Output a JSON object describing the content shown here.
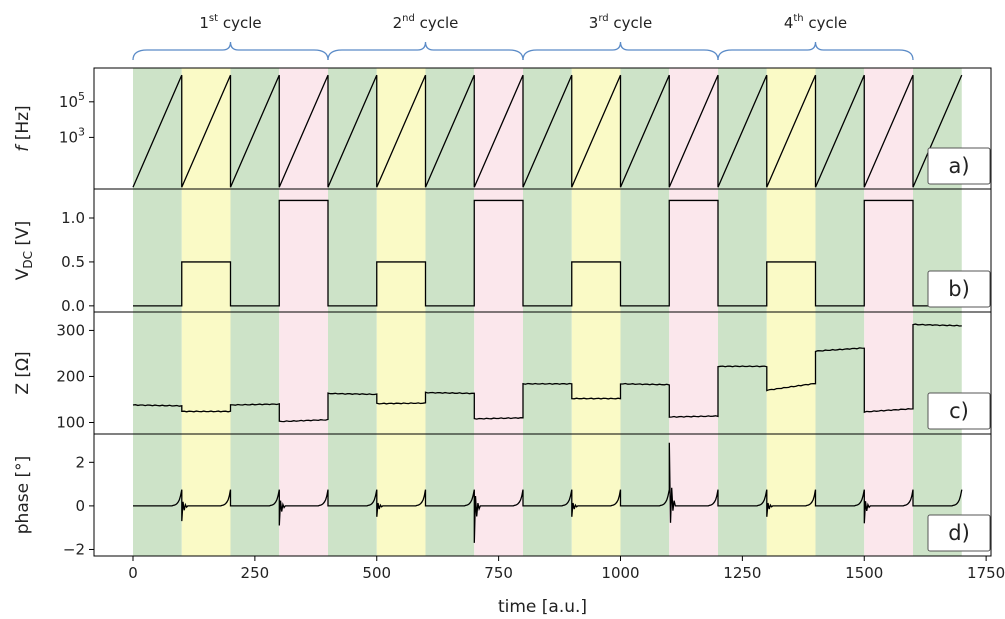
{
  "chart_data": {
    "type": "line",
    "xlabel": "time [a.u.]",
    "xlim": [
      -80,
      1760
    ],
    "x_ticks": [
      0,
      250,
      500,
      750,
      1000,
      1250,
      1500,
      1750
    ],
    "phases": {
      "segment_length": 100,
      "sequence": [
        "green",
        "yellow",
        "green",
        "pink",
        "green",
        "yellow",
        "green",
        "pink",
        "green",
        "yellow",
        "green",
        "pink",
        "green",
        "yellow",
        "green",
        "pink",
        "green"
      ],
      "colors": {
        "green": "#cde3c8",
        "yellow": "#fafac6",
        "pink": "#fbe7ec"
      }
    },
    "cycles": [
      {
        "label": "1",
        "sup": "st",
        "suffix": " cycle",
        "x_start": 0,
        "x_end": 400
      },
      {
        "label": "2",
        "sup": "nd",
        "suffix": " cycle",
        "x_start": 400,
        "x_end": 800
      },
      {
        "label": "3",
        "sup": "rd",
        "suffix": " cycle",
        "x_start": 800,
        "x_end": 1200
      },
      {
        "label": "4",
        "sup": "th",
        "suffix": " cycle",
        "x_start": 1200,
        "x_end": 1600
      }
    ],
    "panels": [
      {
        "id": "a",
        "tag": "a)",
        "ylabel_main": "f",
        "ylabel_unit": " [Hz]",
        "scale": "log",
        "ylim_log10": [
          0.1,
          6.9
        ],
        "y_ticks": [
          {
            "base": "10",
            "exp": "3",
            "value_log10": 3
          },
          {
            "base": "10",
            "exp": "5",
            "value_log10": 5
          }
        ],
        "series": {
          "name": "",
          "kind": "sawtooth_log",
          "period": 100,
          "log10_min": 0.2,
          "log10_max": 6.5
        }
      },
      {
        "id": "b",
        "tag": "b)",
        "ylabel_main": "V",
        "ylabel_sub": "DC",
        "ylabel_unit": " [V]",
        "ylim": [
          -0.07,
          1.33
        ],
        "y_ticks": [
          "0.0",
          "0.5",
          "1.0"
        ],
        "series": {
          "name": "",
          "kind": "step",
          "levels_by_segment": [
            0,
            0.5,
            0,
            1.2,
            0,
            0.5,
            0,
            1.2,
            0,
            0.5,
            0,
            1.2,
            0,
            0.5,
            0,
            1.2,
            0
          ]
        }
      },
      {
        "id": "c",
        "tag": "c)",
        "ylabel": "Z [Ω]",
        "ylim": [
          75,
          340
        ],
        "y_ticks": [
          "100",
          "200",
          "300"
        ],
        "series": {
          "name": "",
          "kind": "piecewise",
          "segments": [
            [
              0,
              100,
              138,
              136
            ],
            [
              100,
              200,
              124,
              124
            ],
            [
              200,
              300,
              138,
              140
            ],
            [
              300,
              400,
              102,
              106
            ],
            [
              400,
              500,
              163,
              161
            ],
            [
              500,
              600,
              141,
              142
            ],
            [
              600,
              700,
              165,
              163
            ],
            [
              700,
              800,
              108,
              110
            ],
            [
              800,
              900,
              184,
              184
            ],
            [
              900,
              1000,
              152,
              152
            ],
            [
              1000,
              1100,
              184,
              182
            ],
            [
              1100,
              1200,
              112,
              114
            ],
            [
              1200,
              1300,
              222,
              222
            ],
            [
              1300,
              1400,
              170,
              185
            ],
            [
              1400,
              1500,
              255,
              262
            ],
            [
              1500,
              1600,
              123,
              130
            ],
            [
              1600,
              1700,
              313,
              310
            ]
          ]
        }
      },
      {
        "id": "d",
        "tag": "d)",
        "ylabel": "phase [°]",
        "ylim": [
          -2.3,
          3.3
        ],
        "y_ticks": [
          "−2",
          "0",
          "2"
        ],
        "series": {
          "name": "",
          "kind": "spikes",
          "base": 0,
          "end_spike": 0.75,
          "transients_by_segment_start": [
            {
              "x": 100,
              "amp": -0.7
            },
            {
              "x": 300,
              "amp": -0.9
            },
            {
              "x": 500,
              "amp": -0.5
            },
            {
              "x": 700,
              "amp": -1.7
            },
            {
              "x": 900,
              "amp": -0.5
            },
            {
              "x": 1100,
              "amp": 2.9
            },
            {
              "x": 1300,
              "amp": -0.5
            },
            {
              "x": 1500,
              "amp": -0.8
            }
          ]
        }
      }
    ]
  }
}
